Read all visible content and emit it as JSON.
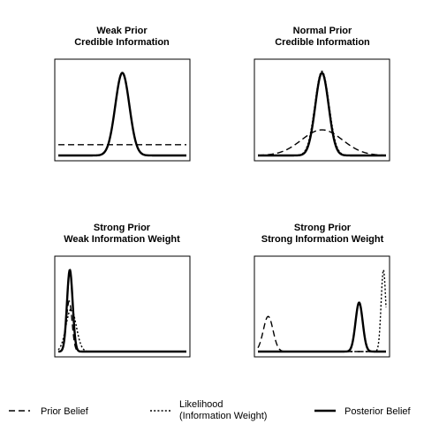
{
  "chart_data": {
    "type": "line",
    "x_domain": [
      0,
      10
    ],
    "panels": [
      {
        "title_line1": "Weak Prior",
        "title_line2": "Credible Information",
        "ylim": [
          0,
          1.08
        ],
        "prior": {
          "kind": "uniform",
          "value": 0.13
        },
        "likelihood": null,
        "posterior": {
          "mu": 5.0,
          "sigma": 0.55,
          "peak": 1.0
        }
      },
      {
        "title_line1": "Normal Prior",
        "title_line2": "Credible Information",
        "ylim": [
          0,
          1.08
        ],
        "prior": {
          "kind": "normal",
          "mu": 5.0,
          "sigma": 1.6,
          "peak": 0.31
        },
        "likelihood": {
          "mu": 5.0,
          "sigma": 0.55,
          "peak": 1.02
        },
        "posterior": {
          "mu": 5.0,
          "sigma": 0.52,
          "peak": 1.0
        }
      },
      {
        "title_line1": "Strong Prior",
        "title_line2": "Weak Information Weight",
        "ylim": [
          0,
          1.08
        ],
        "prior": {
          "kind": "normal",
          "mu": 0.85,
          "sigma": 0.22,
          "peak": 0.62
        },
        "likelihood": {
          "mu": 1.0,
          "sigma": 0.4,
          "peak": 0.52
        },
        "posterior": {
          "mu": 0.9,
          "sigma": 0.22,
          "peak": 1.0
        }
      },
      {
        "title_line1": "Strong Prior",
        "title_line2": "Strong Information Weight",
        "ylim": [
          0,
          1.08
        ],
        "prior": {
          "kind": "normal",
          "mu": 0.8,
          "sigma": 0.38,
          "peak": 0.43
        },
        "likelihood": {
          "mu": 9.8,
          "sigma": 0.18,
          "peak": 1.0
        },
        "posterior": {
          "mu": 7.9,
          "sigma": 0.28,
          "peak": 0.6
        }
      }
    ],
    "legend": [
      {
        "style": "dashed",
        "line1": "Prior Belief",
        "line2": ""
      },
      {
        "style": "dotted",
        "line1": "Likelihood",
        "line2": "(Information Weight)"
      },
      {
        "style": "solid",
        "line1": "Posterior Belief",
        "line2": ""
      }
    ]
  }
}
